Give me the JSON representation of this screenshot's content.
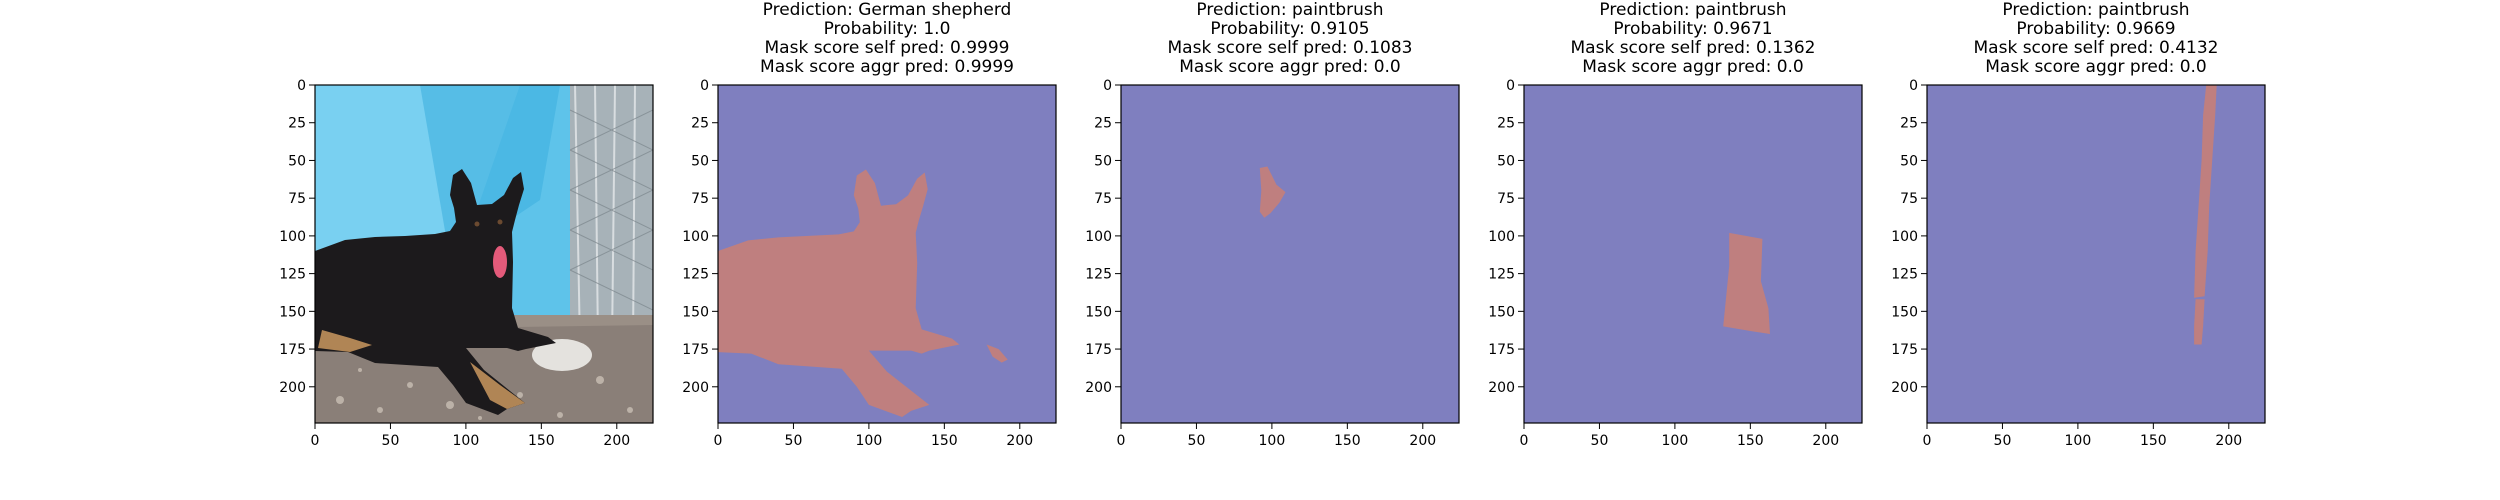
{
  "figure": {
    "panels": [
      {
        "kind": "photo",
        "title_lines": [],
        "photo_description_icon": "dog-photo"
      },
      {
        "kind": "mask",
        "title_lines": [
          "Prediction: German shepherd",
          "Probability: 1.0",
          "Mask score self pred: 0.9999",
          "Mask score aggr pred: 0.9999"
        ]
      },
      {
        "kind": "mask",
        "title_lines": [
          "Prediction: paintbrush",
          "Probability: 0.9105",
          "Mask score self pred: 0.1083",
          "Mask score aggr pred: 0.0"
        ]
      },
      {
        "kind": "mask",
        "title_lines": [
          "Prediction: paintbrush",
          "Probability: 0.9671",
          "Mask score self pred: 0.1362",
          "Mask score aggr pred: 0.0"
        ]
      },
      {
        "kind": "mask",
        "title_lines": [
          "Prediction: paintbrush",
          "Probability: 0.9669",
          "Mask score self pred: 0.4132",
          "Mask score aggr pred: 0.0"
        ]
      }
    ],
    "colors": {
      "background_mask": "#7f7fbf",
      "foreground_mask": "#bf7f7f"
    }
  },
  "chart_data": [
    {
      "type": "heatmap",
      "subtype": "image",
      "title": "",
      "xlim": [
        0,
        224
      ],
      "ylim": [
        224,
        0
      ],
      "xticks": [
        0,
        50,
        100,
        150,
        200
      ],
      "yticks": [
        0,
        25,
        50,
        75,
        100,
        125,
        150,
        175,
        200
      ],
      "grid": false
    },
    {
      "type": "heatmap",
      "subtype": "binary-mask",
      "title": "Prediction: German shepherd",
      "xlim": [
        0,
        224
      ],
      "ylim": [
        224,
        0
      ],
      "xticks": [
        0,
        50,
        100,
        150,
        200
      ],
      "yticks": [
        0,
        25,
        50,
        75,
        100,
        125,
        150,
        175,
        200
      ],
      "grid": false,
      "regions": [
        {
          "polygon": [
            [
              0,
              110
            ],
            [
              20,
              103
            ],
            [
              40,
              101
            ],
            [
              60,
              100
            ],
            [
              80,
              99
            ],
            [
              90,
              97
            ],
            [
              94,
              91
            ],
            [
              93,
              82
            ],
            [
              90,
              73
            ],
            [
              92,
              60
            ],
            [
              98,
              56
            ],
            [
              104,
              65
            ],
            [
              108,
              80
            ],
            [
              118,
              79
            ],
            [
              126,
              73
            ],
            [
              132,
              62
            ],
            [
              137,
              58
            ],
            [
              139,
              69
            ],
            [
              136,
              80
            ],
            [
              133,
              90
            ],
            [
              131,
              98
            ],
            [
              132,
              118
            ],
            [
              131,
              148
            ],
            [
              135,
              162
            ],
            [
              155,
              168
            ],
            [
              160,
              172
            ],
            [
              140,
              176
            ],
            [
              135,
              178
            ],
            [
              128,
              176
            ],
            [
              100,
              176
            ],
            [
              112,
              190
            ],
            [
              140,
              212
            ],
            [
              128,
              216
            ],
            [
              122,
              220
            ],
            [
              100,
              212
            ],
            [
              92,
              200
            ],
            [
              82,
              188
            ],
            [
              40,
              185
            ],
            [
              22,
              178
            ],
            [
              0,
              177
            ]
          ]
        },
        {
          "polygon": [
            [
              178,
              172
            ],
            [
              186,
              175
            ],
            [
              192,
              182
            ],
            [
              188,
              184
            ],
            [
              182,
              180
            ]
          ]
        }
      ]
    },
    {
      "type": "heatmap",
      "subtype": "binary-mask",
      "title": "Prediction: paintbrush",
      "xlim": [
        0,
        224
      ],
      "ylim": [
        224,
        0
      ],
      "xticks": [
        0,
        50,
        100,
        150,
        200
      ],
      "yticks": [
        0,
        25,
        50,
        75,
        100,
        125,
        150,
        175,
        200
      ],
      "grid": false,
      "regions": [
        {
          "polygon": [
            [
              92,
              55
            ],
            [
              97,
              54
            ],
            [
              100,
              60
            ],
            [
              103,
              66
            ],
            [
              109,
              71
            ],
            [
              105,
              78
            ],
            [
              99,
              85
            ],
            [
              95,
              88
            ],
            [
              92,
              84
            ],
            [
              93,
              70
            ]
          ]
        }
      ]
    },
    {
      "type": "heatmap",
      "subtype": "binary-mask",
      "title": "Prediction: paintbrush",
      "xlim": [
        0,
        224
      ],
      "ylim": [
        224,
        0
      ],
      "xticks": [
        0,
        50,
        100,
        150,
        200
      ],
      "yticks": [
        0,
        25,
        50,
        75,
        100,
        125,
        150,
        175,
        200
      ],
      "grid": false,
      "regions": [
        {
          "polygon": [
            [
              136,
              98
            ],
            [
              158,
              102
            ],
            [
              157,
              130
            ],
            [
              162,
              148
            ],
            [
              163,
              165
            ],
            [
              150,
              163
            ],
            [
              132,
              160
            ],
            [
              134,
              140
            ],
            [
              136,
              120
            ]
          ]
        }
      ]
    },
    {
      "type": "heatmap",
      "subtype": "binary-mask",
      "title": "Prediction: paintbrush",
      "xlim": [
        0,
        224
      ],
      "ylim": [
        224,
        0
      ],
      "xticks": [
        0,
        50,
        100,
        150,
        200
      ],
      "yticks": [
        0,
        25,
        50,
        75,
        100,
        125,
        150,
        175,
        200
      ],
      "grid": false,
      "regions": [
        {
          "polygon": [
            [
              185,
              0
            ],
            [
              192,
              0
            ],
            [
              191,
              20
            ],
            [
              189,
              50
            ],
            [
              187,
              80
            ],
            [
              186,
              110
            ],
            [
              184,
              140
            ],
            [
              177,
              141
            ],
            [
              178,
              110
            ],
            [
              180,
              80
            ],
            [
              182,
              50
            ],
            [
              183,
              20
            ]
          ]
        },
        {
          "polygon": [
            [
              178,
              142
            ],
            [
              184,
              142
            ],
            [
              183,
              160
            ],
            [
              182,
              172
            ],
            [
              177,
              172
            ],
            [
              177,
              160
            ]
          ]
        }
      ]
    }
  ]
}
